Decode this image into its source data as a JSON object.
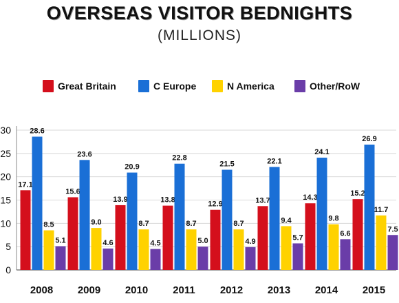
{
  "title": "OVERSEAS VISITOR BEDNIGHTS",
  "subtitle": "(MILLIONS)",
  "chart_data": {
    "type": "bar",
    "title": "OVERSEAS VISITOR BEDNIGHTS",
    "subtitle": "(MILLIONS)",
    "xlabel": "",
    "ylabel": "",
    "ylim": [
      0,
      30
    ],
    "yticks": [
      0,
      5,
      10,
      15,
      20,
      25,
      30
    ],
    "grid": true,
    "legend_position": "top",
    "categories": [
      "2008",
      "2009",
      "2010",
      "2011",
      "2012",
      "2013",
      "2014",
      "2015"
    ],
    "series": [
      {
        "name": "Great Britain",
        "color": "#d40f1c",
        "values": [
          17.1,
          15.6,
          13.9,
          13.8,
          12.9,
          13.7,
          14.3,
          15.2
        ]
      },
      {
        "name": "C Europe",
        "color": "#1a6fd6",
        "values": [
          28.6,
          23.6,
          20.9,
          22.8,
          21.5,
          22.1,
          24.1,
          26.9
        ]
      },
      {
        "name": "N America",
        "color": "#ffd200",
        "values": [
          8.5,
          9.0,
          8.7,
          8.7,
          8.7,
          9.4,
          9.8,
          11.7
        ]
      },
      {
        "name": "Other/RoW",
        "color": "#6a3da8",
        "values": [
          5.1,
          4.6,
          4.5,
          5.0,
          4.9,
          5.7,
          6.6,
          7.5
        ]
      }
    ]
  }
}
